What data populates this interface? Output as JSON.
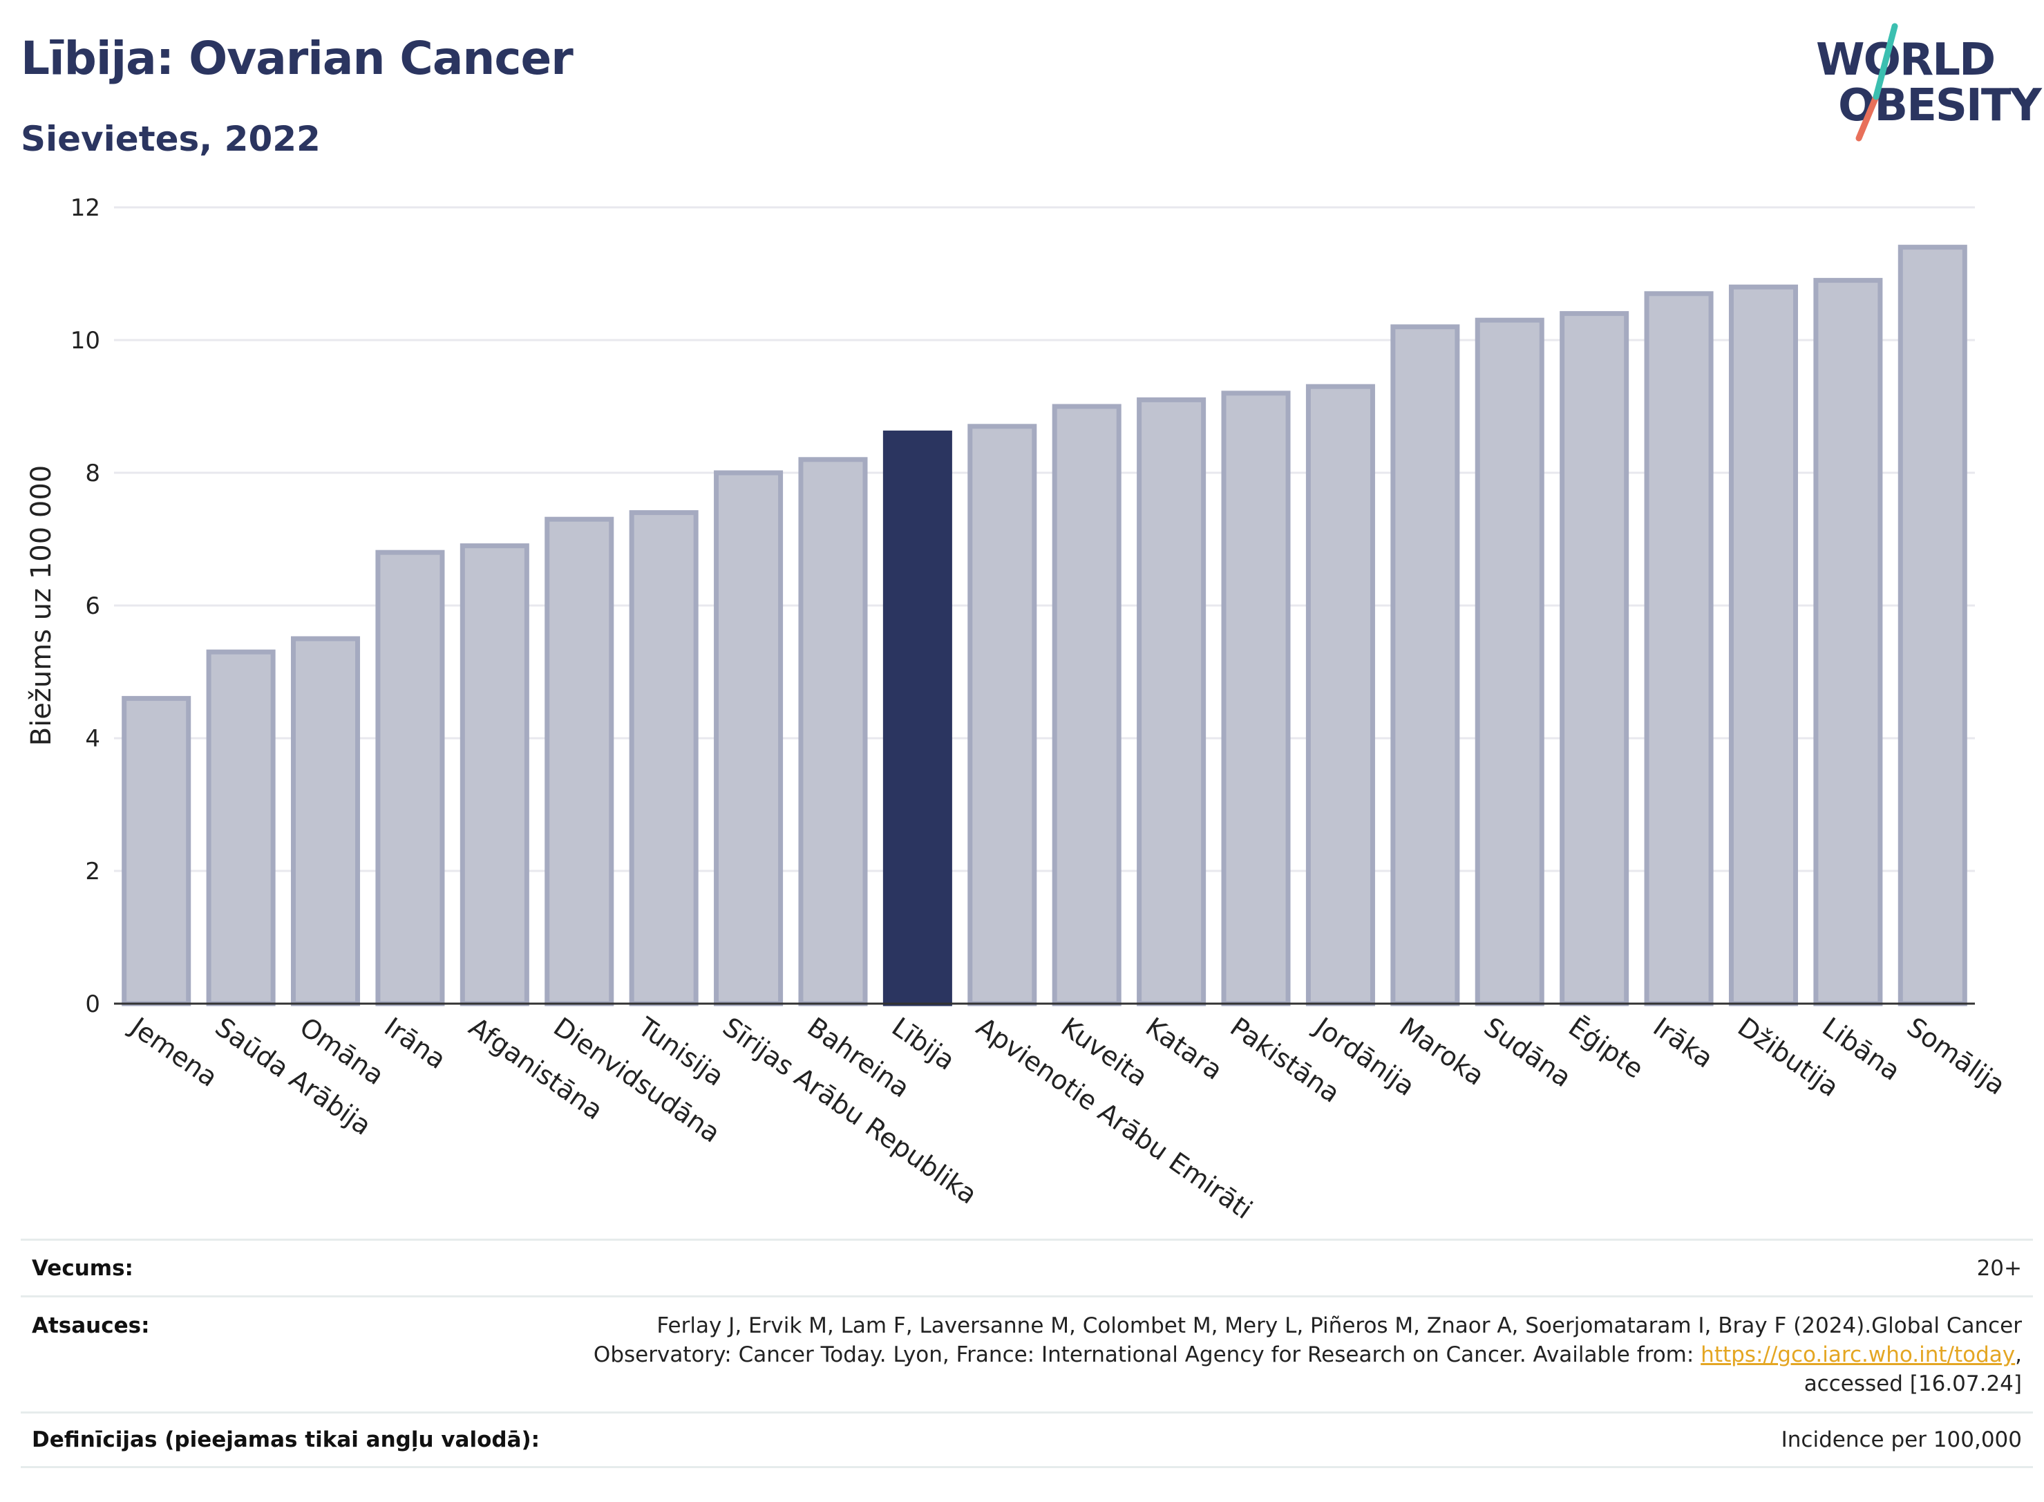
{
  "title": "Lībija: Ovarian Cancer",
  "subtitle": "Sievietes, 2022",
  "logo": {
    "line1": "WORLD",
    "line2": "OBESITY"
  },
  "colors": {
    "highlight": "#2b3560",
    "bar": "#c0c3d0",
    "bar_stroke": "#a5aac0",
    "text": "#2b3560",
    "link": "#e4a623"
  },
  "chart_data": {
    "type": "bar",
    "ylabel": "Biežums uz 100 000",
    "ylim": [
      0,
      12
    ],
    "yticks": [
      0,
      2,
      4,
      6,
      8,
      10,
      12
    ],
    "grid": true,
    "highlight": "Lībija",
    "categories": [
      "Jemena",
      "Saūda Arābija",
      "Omāna",
      "Irāna",
      "Afganistāna",
      "Dienvidsudāna",
      "Tunisija",
      "Sīrijas Arābu Republika",
      "Bahreina",
      "Lībija",
      "Apvienotie Arābu Emirāti",
      "Kuveita",
      "Katara",
      "Pakistāna",
      "Jordānija",
      "Maroka",
      "Sudāna",
      "Ēģipte",
      "Irāka",
      "Džibutija",
      "Libāna",
      "Somālija"
    ],
    "values": [
      4.6,
      5.3,
      5.5,
      6.8,
      6.9,
      7.3,
      7.4,
      8.0,
      8.2,
      8.6,
      8.7,
      9.0,
      9.1,
      9.2,
      9.3,
      10.2,
      10.3,
      10.4,
      10.7,
      10.8,
      10.9,
      11.4
    ]
  },
  "info": {
    "age_label": "Vecums:",
    "age_value": "20+",
    "refs_label": "Atsauces:",
    "refs_line1": "Ferlay J, Ervik M, Lam F, Laversanne M, Colombet M, Mery L, Piñeros M, Znaor A, Soerjomataram I, Bray F (2024).Global Cancer",
    "refs_line2": "Observatory: Cancer Today. Lyon, France: International Agency for Research on Cancer. Available from: ",
    "refs_link": "https://gco.iarc.who.int/today",
    "refs_line2_end": ",",
    "refs_line3": "accessed [16.07.24]",
    "def_label": "Definīcijas (pieejamas tikai angļu valodā):",
    "def_value": "Incidence per 100,000"
  }
}
